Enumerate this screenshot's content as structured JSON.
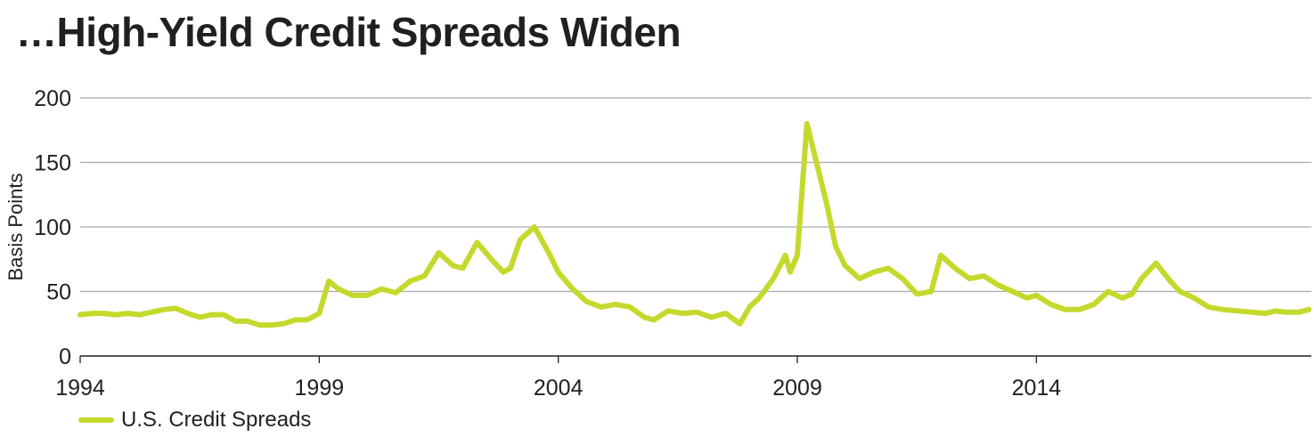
{
  "title": "…High-Yield Credit Spreads Widen",
  "legend": {
    "series_label": "U.S. Credit Spreads"
  },
  "colors": {
    "series": "#c5d92d",
    "grid": "#a7a9ac",
    "text": "#231f20"
  },
  "chart_data": {
    "type": "line",
    "title": "…High-Yield Credit Spreads Widen",
    "ylabel": "Basis Points",
    "xlabel": "",
    "xlim": [
      1994,
      2019.75
    ],
    "ylim": [
      0,
      200
    ],
    "y_ticks": [
      0,
      50,
      100,
      150,
      200
    ],
    "x_ticks": [
      1994,
      1999,
      2004,
      2009,
      2014
    ],
    "grid": "horizontal",
    "legend_position": "bottom-left",
    "series": [
      {
        "name": "U.S. Credit Spreads",
        "x": [
          1994.0,
          1994.25,
          1994.5,
          1994.75,
          1995.0,
          1995.25,
          1995.5,
          1995.75,
          1996.0,
          1996.25,
          1996.5,
          1996.75,
          1997.0,
          1997.25,
          1997.5,
          1997.75,
          1998.0,
          1998.25,
          1998.5,
          1998.75,
          1999.0,
          1999.2,
          1999.4,
          1999.7,
          2000.0,
          2000.3,
          2000.6,
          2000.9,
          2001.2,
          2001.5,
          2001.8,
          2002.0,
          2002.3,
          2002.6,
          2002.85,
          2003.0,
          2003.2,
          2003.5,
          2003.8,
          2004.0,
          2004.3,
          2004.6,
          2004.9,
          2005.2,
          2005.5,
          2005.8,
          2006.0,
          2006.3,
          2006.6,
          2006.9,
          2007.2,
          2007.5,
          2007.8,
          2008.0,
          2008.2,
          2008.5,
          2008.75,
          2008.85,
          2009.0,
          2009.2,
          2009.4,
          2009.6,
          2009.8,
          2010.0,
          2010.3,
          2010.6,
          2010.9,
          2011.2,
          2011.5,
          2011.8,
          2012.0,
          2012.3,
          2012.6,
          2012.9,
          2013.2,
          2013.5,
          2013.8,
          2014.0,
          2014.3,
          2014.6,
          2014.9,
          2015.2,
          2015.5,
          2015.8,
          2016.0,
          2016.2,
          2016.5,
          2016.8,
          2017.0,
          2017.3,
          2017.6,
          2017.9,
          2018.2,
          2018.5,
          2018.8,
          2019.0,
          2019.2,
          2019.5,
          2019.7
        ],
        "values": [
          32,
          33,
          33,
          32,
          33,
          32,
          34,
          36,
          37,
          33,
          30,
          32,
          32,
          27,
          27,
          24,
          24,
          25,
          28,
          28,
          33,
          58,
          52,
          47,
          47,
          52,
          49,
          58,
          62,
          80,
          70,
          68,
          88,
          75,
          65,
          68,
          90,
          100,
          80,
          65,
          52,
          42,
          38,
          40,
          38,
          30,
          28,
          35,
          33,
          34,
          30,
          33,
          25,
          38,
          45,
          60,
          78,
          65,
          78,
          180,
          150,
          120,
          85,
          70,
          60,
          65,
          68,
          60,
          48,
          50,
          78,
          68,
          60,
          62,
          55,
          50,
          45,
          47,
          40,
          36,
          36,
          40,
          50,
          45,
          48,
          60,
          72,
          58,
          50,
          45,
          38,
          36,
          35,
          34,
          33,
          35,
          34,
          34,
          36
        ]
      }
    ]
  }
}
